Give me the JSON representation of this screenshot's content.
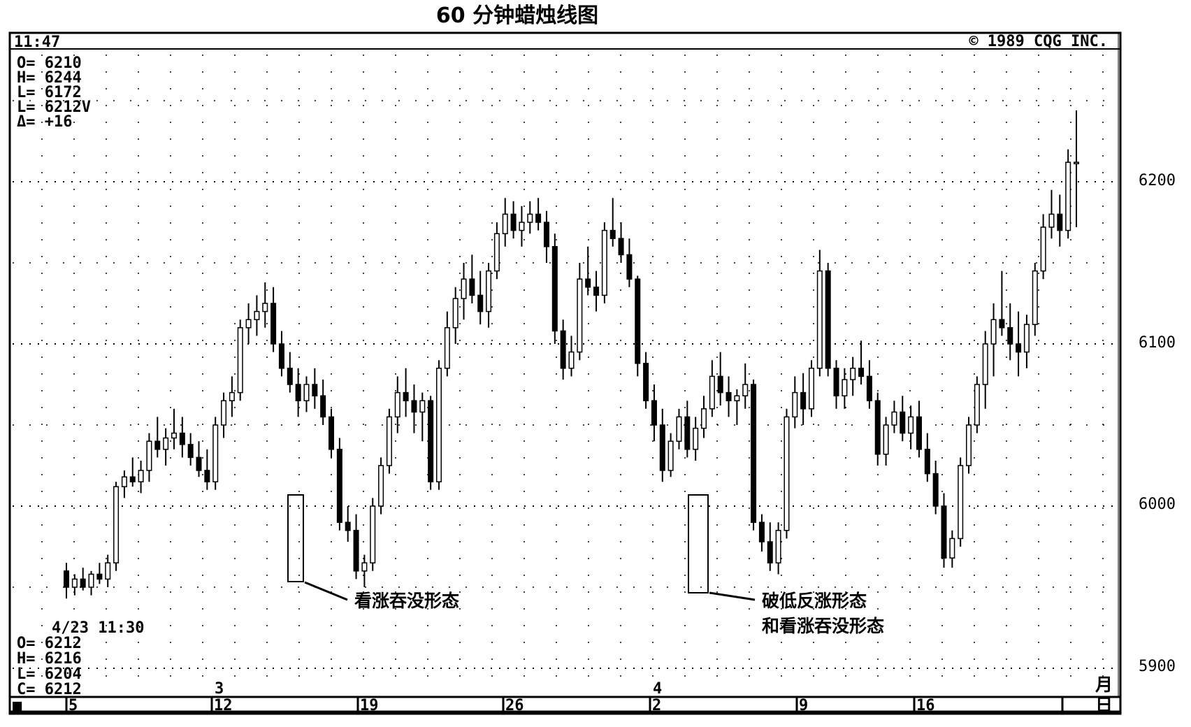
{
  "chart_data": {
    "type": "candlestick",
    "title": "60 分钟蜡烛线图",
    "copyright": "© 1989 CQG INC.",
    "time": "11:47",
    "info_top": [
      "O= 6210",
      "H= 6244",
      "L= 6172",
      "L= 6212V",
      "Δ= +16"
    ],
    "info_bottom": [
      "4/23 11:30",
      "O= 6212",
      "H= 6216",
      "L= 6204",
      "C= 6212"
    ],
    "y_ticks": [
      "6200",
      "6100",
      "6000",
      "5900"
    ],
    "ylim": [
      5880,
      6300
    ],
    "month_labels": [
      "3",
      "4"
    ],
    "date_labels": [
      "5",
      "12",
      "19",
      "26",
      "2",
      "9",
      "16"
    ],
    "axis_unit_top": "月",
    "axis_unit_bottom": "日",
    "corner_marker": "■",
    "annotations": [
      {
        "text": [
          "看涨吞没形态"
        ]
      },
      {
        "text": [
          "破低反涨形态",
          "和看涨吞没形态"
        ]
      }
    ],
    "series": [
      {
        "values": [
          [
            5960,
            5965,
            5943,
            5950
          ],
          [
            5950,
            5958,
            5945,
            5955
          ],
          [
            5955,
            5962,
            5948,
            5950
          ],
          [
            5950,
            5960,
            5945,
            5958
          ],
          [
            5958,
            5965,
            5952,
            5955
          ],
          [
            5955,
            5970,
            5950,
            5965
          ],
          [
            5965,
            6015,
            5960,
            6012
          ],
          [
            6012,
            6022,
            6005,
            6018
          ],
          [
            6018,
            6030,
            6012,
            6015
          ],
          [
            6015,
            6028,
            6008,
            6022
          ],
          [
            6022,
            6045,
            6015,
            6040
          ],
          [
            6040,
            6055,
            6030,
            6035
          ],
          [
            6035,
            6048,
            6025,
            6042
          ],
          [
            6042,
            6060,
            6035,
            6045
          ],
          [
            6045,
            6055,
            6030,
            6038
          ],
          [
            6038,
            6045,
            6025,
            6030
          ],
          [
            6030,
            6040,
            6018,
            6022
          ],
          [
            6022,
            6035,
            6010,
            6015
          ],
          [
            6015,
            6055,
            6010,
            6050
          ],
          [
            6050,
            6070,
            6042,
            6065
          ],
          [
            6065,
            6080,
            6055,
            6070
          ],
          [
            6070,
            6115,
            6065,
            6110
          ],
          [
            6110,
            6125,
            6100,
            6115
          ],
          [
            6115,
            6130,
            6105,
            6120
          ],
          [
            6120,
            6138,
            6110,
            6125
          ],
          [
            6125,
            6135,
            6095,
            6100
          ],
          [
            6100,
            6108,
            6080,
            6085
          ],
          [
            6085,
            6095,
            6070,
            6075
          ],
          [
            6075,
            6085,
            6055,
            6065
          ],
          [
            6065,
            6080,
            6058,
            6075
          ],
          [
            6075,
            6085,
            6060,
            6068
          ],
          [
            6068,
            6078,
            6050,
            6055
          ],
          [
            6055,
            6060,
            6030,
            6035
          ],
          [
            6035,
            6042,
            5985,
            5990
          ],
          [
            5990,
            6000,
            5978,
            5985
          ],
          [
            5985,
            5995,
            5955,
            5960
          ],
          [
            5960,
            5970,
            5950,
            5965
          ],
          [
            5965,
            6005,
            5960,
            6000
          ],
          [
            6000,
            6030,
            5995,
            6025
          ],
          [
            6025,
            6060,
            6020,
            6055
          ],
          [
            6055,
            6080,
            6045,
            6070
          ],
          [
            6070,
            6085,
            6055,
            6065
          ],
          [
            6065,
            6075,
            6045,
            6058
          ],
          [
            6058,
            6070,
            6040,
            6065
          ],
          [
            6065,
            6068,
            6010,
            6015
          ],
          [
            6015,
            6090,
            6010,
            6085
          ],
          [
            6085,
            6120,
            6080,
            6110
          ],
          [
            6110,
            6135,
            6100,
            6128
          ],
          [
            6128,
            6150,
            6115,
            6140
          ],
          [
            6140,
            6155,
            6125,
            6130
          ],
          [
            6130,
            6145,
            6112,
            6120
          ],
          [
            6120,
            6150,
            6110,
            6145
          ],
          [
            6145,
            6175,
            6140,
            6168
          ],
          [
            6168,
            6190,
            6160,
            6180
          ],
          [
            6180,
            6188,
            6165,
            6170
          ],
          [
            6170,
            6185,
            6160,
            6175
          ],
          [
            6175,
            6188,
            6168,
            6180
          ],
          [
            6180,
            6190,
            6170,
            6175
          ],
          [
            6175,
            6182,
            6150,
            6160
          ],
          [
            6160,
            6168,
            6100,
            6108
          ],
          [
            6108,
            6115,
            6078,
            6085
          ],
          [
            6085,
            6105,
            6080,
            6095
          ],
          [
            6095,
            6150,
            6090,
            6140
          ],
          [
            6140,
            6160,
            6130,
            6135
          ],
          [
            6135,
            6145,
            6120,
            6130
          ],
          [
            6130,
            6175,
            6125,
            6170
          ],
          [
            6170,
            6190,
            6160,
            6165
          ],
          [
            6165,
            6175,
            6150,
            6155
          ],
          [
            6155,
            6165,
            6135,
            6140
          ],
          [
            6140,
            6142,
            6080,
            6088
          ],
          [
            6088,
            6095,
            6060,
            6065
          ],
          [
            6065,
            6075,
            6040,
            6050
          ],
          [
            6050,
            6060,
            6015,
            6022
          ],
          [
            6022,
            6045,
            6018,
            6040
          ],
          [
            6040,
            6060,
            6035,
            6055
          ],
          [
            6055,
            6065,
            6030,
            6035
          ],
          [
            6035,
            6055,
            6028,
            6048
          ],
          [
            6048,
            6068,
            6042,
            6060
          ],
          [
            6060,
            6090,
            6055,
            6080
          ],
          [
            6080,
            6095,
            6062,
            6070
          ],
          [
            6070,
            6080,
            6055,
            6065
          ],
          [
            6065,
            6072,
            6050,
            6068
          ],
          [
            6068,
            6088,
            6060,
            6075
          ],
          [
            6075,
            6078,
            5985,
            5990
          ],
          [
            5990,
            5995,
            5972,
            5978
          ],
          [
            5978,
            5990,
            5960,
            5965
          ],
          [
            5965,
            5990,
            5958,
            5985
          ],
          [
            5985,
            6060,
            5980,
            6055
          ],
          [
            6055,
            6080,
            6048,
            6070
          ],
          [
            6070,
            6082,
            6050,
            6060
          ],
          [
            6060,
            6090,
            6055,
            6085
          ],
          [
            6085,
            6158,
            6080,
            6145
          ],
          [
            6145,
            6150,
            6080,
            6085
          ],
          [
            6085,
            6090,
            6060,
            6068
          ],
          [
            6068,
            6085,
            6060,
            6078
          ],
          [
            6078,
            6092,
            6068,
            6085
          ],
          [
            6085,
            6102,
            6075,
            6080
          ],
          [
            6080,
            6090,
            6060,
            6065
          ],
          [
            6065,
            6070,
            6025,
            6032
          ],
          [
            6032,
            6055,
            6025,
            6050
          ],
          [
            6050,
            6065,
            6045,
            6058
          ],
          [
            6058,
            6068,
            6040,
            6045
          ],
          [
            6045,
            6062,
            6035,
            6055
          ],
          [
            6055,
            6065,
            6030,
            6035
          ],
          [
            6035,
            6045,
            6015,
            6020
          ],
          [
            6020,
            6028,
            5995,
            6000
          ],
          [
            6000,
            6008,
            5962,
            5968
          ],
          [
            5968,
            5985,
            5962,
            5980
          ],
          [
            5980,
            6030,
            5975,
            6025
          ],
          [
            6025,
            6055,
            6020,
            6050
          ],
          [
            6050,
            6080,
            6045,
            6075
          ],
          [
            6075,
            6108,
            6060,
            6100
          ],
          [
            6100,
            6125,
            6080,
            6115
          ],
          [
            6115,
            6145,
            6105,
            6110
          ],
          [
            6110,
            6125,
            6090,
            6100
          ],
          [
            6100,
            6120,
            6080,
            6095
          ],
          [
            6095,
            6118,
            6085,
            6112
          ],
          [
            6112,
            6150,
            6105,
            6145
          ],
          [
            6145,
            6180,
            6140,
            6172
          ],
          [
            6172,
            6195,
            6165,
            6180
          ],
          [
            6180,
            6192,
            6160,
            6170
          ],
          [
            6170,
            6220,
            6165,
            6212
          ],
          [
            6212,
            6244,
            6172,
            6212
          ]
        ]
      }
    ]
  }
}
